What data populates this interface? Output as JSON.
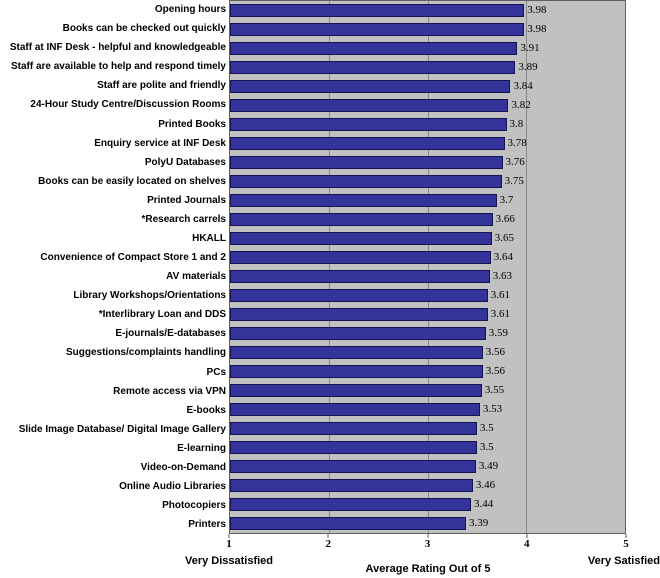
{
  "chart_data": {
    "type": "bar",
    "orientation": "horizontal",
    "title": "",
    "xlabel": "Average Rating Out of 5",
    "axis_captions": {
      "min": "Very Dissatisfied",
      "max": "Very Satisfied"
    },
    "xlim": [
      1,
      5
    ],
    "xticks": [
      "1",
      "2",
      "3",
      "4",
      "5"
    ],
    "gridlines_at": [
      2,
      3,
      4
    ],
    "legend_position": "none",
    "grid": "vertical-only",
    "plot_bg": "#c1c1c1",
    "bar_color": "#333399",
    "bar_border_color": "#14144e",
    "gridline_color": "#888888",
    "categories": [
      "Opening hours",
      "Books can be checked out quickly",
      "Staff at INF Desk - helpful and knowledgeable",
      "Staff are available to help and respond timely",
      "Staff are polite and friendly",
      "24-Hour Study Centre/Discussion Rooms",
      "Printed Books",
      "Enquiry service at INF Desk",
      "PolyU Databases",
      "Books can be easily located on shelves",
      "Printed Journals",
      "*Research carrels",
      "HKALL",
      "Convenience of Compact Store 1 and 2",
      "AV materials",
      "Library Workshops/Orientations",
      "*Interlibrary Loan and DDS",
      "E-journals/E-databases",
      "Suggestions/complaints handling",
      "PCs",
      "Remote access via VPN",
      "E-books",
      "Slide Image Database/ Digital Image Gallery",
      "E-learning",
      "Video-on-Demand",
      "Online Audio Libraries",
      "Photocopiers",
      "Printers"
    ],
    "values": [
      3.98,
      3.98,
      3.91,
      3.89,
      3.84,
      3.82,
      3.8,
      3.78,
      3.76,
      3.75,
      3.7,
      3.66,
      3.65,
      3.64,
      3.63,
      3.61,
      3.61,
      3.59,
      3.56,
      3.56,
      3.55,
      3.53,
      3.5,
      3.5,
      3.49,
      3.46,
      3.44,
      3.39
    ],
    "value_labels": [
      "3.98",
      "3.98",
      "3.91",
      "3.89",
      "3.84",
      "3.82",
      "3.8",
      "3.78",
      "3.76",
      "3.75",
      "3.7",
      "3.66",
      "3.65",
      "3.64",
      "3.63",
      "3.61",
      "3.61",
      "3.59",
      "3.56",
      "3.56",
      "3.55",
      "3.53",
      "3.5",
      "3.5",
      "3.49",
      "3.46",
      "3.44",
      "3.39"
    ]
  }
}
